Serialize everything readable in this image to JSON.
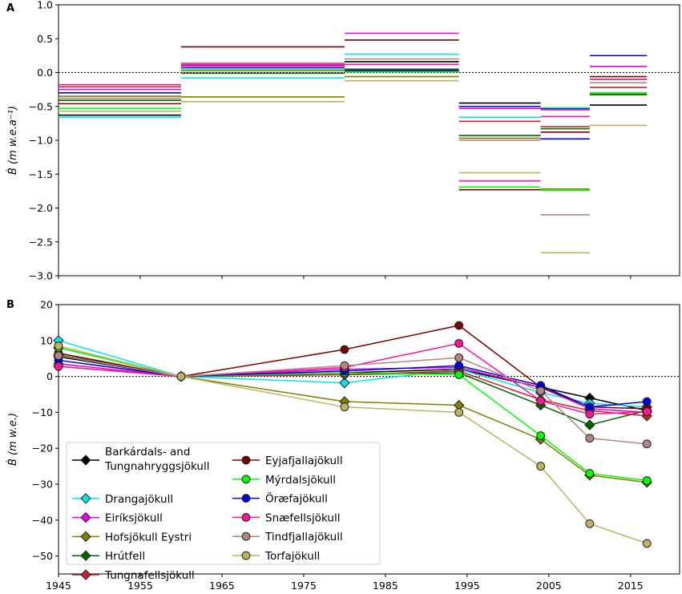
{
  "chart_data": [
    {
      "panel_label": "A",
      "type": "step",
      "title": "",
      "ylabel": "Ḃ (m w.e.a⁻¹)",
      "xlim": [
        1945,
        2021
      ],
      "ylim": [
        -3.0,
        1.0
      ],
      "yticks": [
        1.0,
        0.5,
        0.0,
        -0.5,
        -1.0,
        -1.5,
        -2.0,
        -2.5,
        -3.0
      ],
      "ytick_labels": [
        "1.0",
        "0.5",
        "0.0",
        "−0.5",
        "−1.0",
        "−1.5",
        "−2.0",
        "−2.5",
        "−3.0"
      ],
      "zero_line": "dotted",
      "periods": [
        {
          "start": 1945,
          "end": 1960
        },
        {
          "start": 1960,
          "end": 1980
        },
        {
          "start": 1980,
          "end": 1994
        },
        {
          "start": 1994,
          "end": 2004
        },
        {
          "start": 2004,
          "end": 2010
        },
        {
          "start": 2010,
          "end": 2017
        }
      ],
      "series": [
        {
          "name": "Barkárdals- and Tungnahryggsjökull",
          "color": "#000000",
          "values": [
            -0.63,
            0.1,
            0.16,
            -0.45,
            -0.53,
            -0.48
          ]
        },
        {
          "name": "Drangajökull",
          "color": "#00e5e5",
          "values": [
            -0.66,
            -0.08,
            0.27,
            -0.66,
            -0.52,
            -0.1
          ]
        },
        {
          "name": "Eiríksjökull",
          "color": "#e600e6",
          "values": [
            -0.25,
            0.1,
            0.58,
            -0.53,
            -0.55,
            0.09
          ]
        },
        {
          "name": "Hofsjökull Eystri",
          "color": "#7f7f00",
          "values": [
            -0.35,
            -0.36,
            -0.06,
            -0.97,
            -1.72,
            -0.33
          ]
        },
        {
          "name": "Hrútfell",
          "color": "#006400",
          "values": [
            -0.41,
            -0.01,
            0.05,
            -0.93,
            -0.83,
            -0.32
          ]
        },
        {
          "name": "Tungnafellsjökull",
          "color": "#d0202c",
          "values": [
            -0.21,
            0.03,
            0.02,
            -0.72,
            -0.8,
            -0.22
          ]
        },
        {
          "name": "Eyjafjallajökull",
          "color": "#7b0000",
          "values": [
            -0.46,
            0.38,
            0.48,
            -1.73,
            -0.88,
            -0.06
          ]
        },
        {
          "name": "Mýrdalsjökull",
          "color": "#00ff00",
          "values": [
            -0.53,
            0.04,
            0.01,
            -1.69,
            -1.74,
            -0.3
          ]
        },
        {
          "name": "Öræfajökull",
          "color": "#0000e0",
          "values": [
            -0.3,
            0.07,
            0.03,
            -0.5,
            -0.98,
            0.25
          ]
        },
        {
          "name": "Snæfellsjökull",
          "color": "#ff1493",
          "values": [
            -0.18,
            0.12,
            0.12,
            -1.6,
            -0.65,
            -0.1
          ]
        },
        {
          "name": "Tindfjallajökull",
          "color": "#b58484",
          "values": [
            -0.38,
            0.14,
            0.2,
            -1.0,
            -2.1,
            -0.15
          ]
        },
        {
          "name": "Torfajökull",
          "color": "#bdb361",
          "values": [
            -0.57,
            -0.43,
            -0.12,
            -1.48,
            -2.66,
            -0.78
          ]
        }
      ]
    },
    {
      "panel_label": "B",
      "type": "line",
      "title": "",
      "xlabel": "",
      "ylabel": "Ḃ (m w.e.)",
      "xlim": [
        1945,
        2021
      ],
      "ylim": [
        -55,
        20
      ],
      "xticks": [
        1945,
        1955,
        1965,
        1975,
        1985,
        1995,
        2005,
        2015
      ],
      "xtick_labels": [
        "1945",
        "1955",
        "1965",
        "1975",
        "1985",
        "1995",
        "2005",
        "2015"
      ],
      "yticks": [
        20,
        10,
        0,
        -10,
        -20,
        -30,
        -40,
        -50
      ],
      "ytick_labels": [
        "20",
        "10",
        "0",
        "−10",
        "−20",
        "−30",
        "−40",
        "−50"
      ],
      "zero_line": "dotted",
      "legend_position": "bottom-left",
      "legend": [
        {
          "label": "Barkárdals- and\nTungnahryggsjökull",
          "color": "#000000",
          "marker": "diamond"
        },
        {
          "label": "Drangajökull",
          "color": "#00e5e5",
          "marker": "diamond"
        },
        {
          "label": "Eiríksjökull",
          "color": "#e600e6",
          "marker": "diamond"
        },
        {
          "label": "Hofsjökull Eystri",
          "color": "#7f7f00",
          "marker": "diamond"
        },
        {
          "label": "Hrútfell",
          "color": "#006400",
          "marker": "diamond"
        },
        {
          "label": "Tungnafellsjökull",
          "color": "#d0202c",
          "marker": "diamond"
        },
        {
          "label": "Eyjafjallajökull",
          "color": "#7b0000",
          "marker": "circle"
        },
        {
          "label": "Mýrdalsjökull",
          "color": "#00ff00",
          "marker": "circle"
        },
        {
          "label": "Öræfajökull",
          "color": "#0000e0",
          "marker": "circle"
        },
        {
          "label": "Snæfellsjökull",
          "color": "#ff1493",
          "marker": "circle"
        },
        {
          "label": "Tindfjallajökull",
          "color": "#b58484",
          "marker": "circle"
        },
        {
          "label": "Torfajökull",
          "color": "#bdb361",
          "marker": "circle"
        }
      ],
      "x": [
        1945,
        1960,
        1980,
        1994,
        2004,
        2010,
        2017
      ],
      "series": [
        {
          "name": "Barkárdals- and Tungnahryggsjökull",
          "color": "#000000",
          "marker": "diamond",
          "values": [
            5.5,
            0,
            1.0,
            2.0,
            -3.0,
            -6.0,
            -9.5
          ]
        },
        {
          "name": "Drangajökull",
          "color": "#00e5e5",
          "marker": "diamond",
          "values": [
            10.0,
            0,
            -1.8,
            2.0,
            -4.5,
            -7.5,
            -8.5
          ]
        },
        {
          "name": "Eiríksjökull",
          "color": "#e600e6",
          "marker": "diamond",
          "values": [
            3.5,
            0,
            2.0,
            2.5,
            -3.0,
            -9.0,
            -10.0
          ]
        },
        {
          "name": "Hofsjökull Eystri",
          "color": "#7f7f00",
          "marker": "diamond",
          "values": [
            8.0,
            0,
            -7.0,
            -8.0,
            -17.5,
            -27.5,
            -29.5
          ]
        },
        {
          "name": "Hrútfell",
          "color": "#006400",
          "marker": "diamond",
          "values": [
            6.0,
            0,
            0.5,
            1.0,
            -8.0,
            -13.5,
            -9.5
          ]
        },
        {
          "name": "Tungnafellsjökull",
          "color": "#d0202c",
          "marker": "diamond",
          "values": [
            2.8,
            0,
            0.5,
            1.5,
            -6.5,
            -9.5,
            -11.0
          ]
        },
        {
          "name": "Eyjafjallajökull",
          "color": "#7b0000",
          "marker": "circle",
          "values": [
            6.5,
            0,
            7.5,
            14.2,
            -3.0,
            -8.5,
            -9.0
          ]
        },
        {
          "name": "Mýrdalsjökull",
          "color": "#00ff00",
          "marker": "circle",
          "values": [
            8.0,
            0,
            1.0,
            0.5,
            -16.5,
            -27.0,
            -29.0
          ]
        },
        {
          "name": "Öræfajökull",
          "color": "#0000e0",
          "marker": "circle",
          "values": [
            4.5,
            0,
            1.5,
            3.0,
            -2.5,
            -8.5,
            -7.0
          ]
        },
        {
          "name": "Snæfellsjökull",
          "color": "#ff1493",
          "marker": "circle",
          "values": [
            2.8,
            0,
            2.5,
            9.2,
            -6.8,
            -10.5,
            -9.8
          ]
        },
        {
          "name": "Tindfjallajökull",
          "color": "#b58484",
          "marker": "circle",
          "values": [
            5.8,
            0,
            3.0,
            5.2,
            -4.0,
            -17.2,
            -18.8
          ]
        },
        {
          "name": "Torfajökull",
          "color": "#bdb361",
          "marker": "circle",
          "values": [
            8.5,
            0,
            -8.5,
            -10.0,
            -25.0,
            -41.0,
            -46.5
          ]
        }
      ]
    }
  ]
}
